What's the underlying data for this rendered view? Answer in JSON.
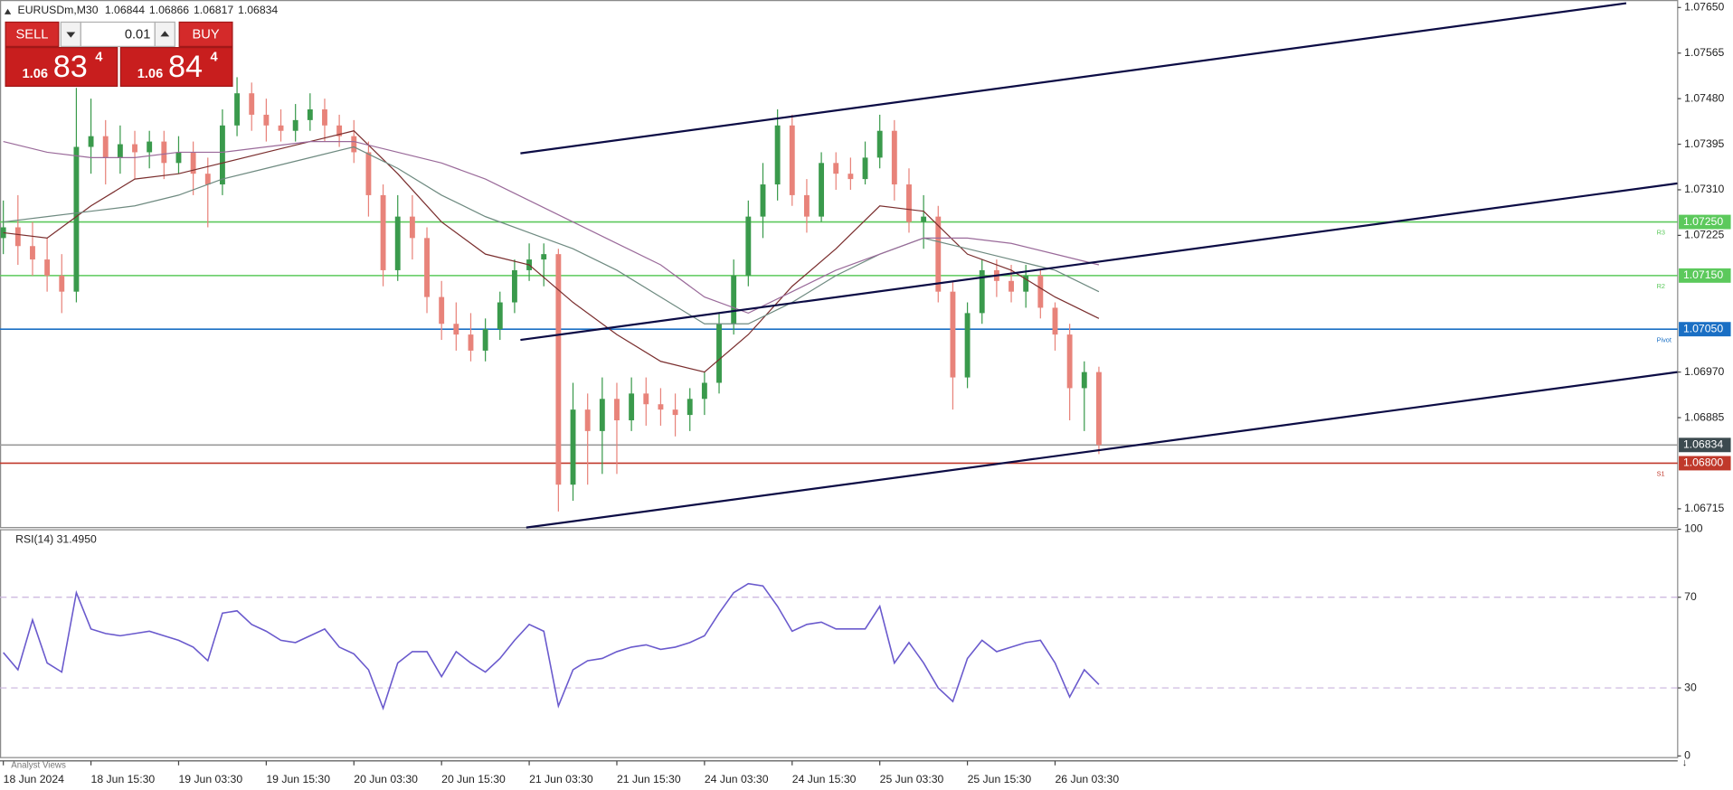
{
  "header": {
    "symbol": "EURUSDm,M30",
    "ohlc": [
      1.06844,
      1.06866,
      1.06817,
      1.06834
    ]
  },
  "trade_panel": {
    "sell": "SELL",
    "buy": "BUY",
    "lot": "0.01",
    "sell_price": [
      "1.06",
      "83",
      "4"
    ],
    "buy_price": [
      "1.06",
      "84",
      "4"
    ]
  },
  "footer": "Analyst Views",
  "chart_data": [
    {
      "type": "candlestick",
      "xlim": [
        -0.2273,
        114.6212
      ],
      "ylim": [
        1.0668,
        1.07664
      ],
      "xticks": [
        {
          "value": 0,
          "label": "18 Jun 2024"
        },
        {
          "value": 6,
          "label": "18 Jun 15:30"
        },
        {
          "value": 12,
          "label": "19 Jun 03:30"
        },
        {
          "value": 18,
          "label": "19 Jun 15:30"
        },
        {
          "value": 24,
          "label": "20 Jun 03:30"
        },
        {
          "value": 30,
          "label": "20 Jun 15:30"
        },
        {
          "value": 36,
          "label": "21 Jun 03:30"
        },
        {
          "value": 42,
          "label": "21 Jun 15:30"
        },
        {
          "value": 48,
          "label": "24 Jun 03:30"
        },
        {
          "value": 54,
          "label": "24 Jun 15:30"
        },
        {
          "value": 60,
          "label": "25 Jun 03:30"
        },
        {
          "value": 66,
          "label": "25 Jun 15:30"
        },
        {
          "value": 72,
          "label": "26 Jun 03:30"
        }
      ],
      "yticks": [
        {
          "value": 1.0765,
          "label": "1.07650"
        },
        1.07565,
        {
          "value": 1.0748,
          "label": "1.07480"
        },
        1.07395,
        {
          "value": 1.0731,
          "label": "1.07310"
        },
        1.07225,
        {
          "value": 1.0697,
          "label": "1.06970"
        },
        1.06885,
        1.06715
      ],
      "bull_color": "#3a9a4c",
      "bear_color": "#e8837a",
      "ohlc": [
        [
          1.0722,
          1.0729,
          1.0719,
          1.0724
        ],
        [
          1.0724,
          1.073,
          1.0717,
          1.07205
        ],
        [
          1.07205,
          1.0725,
          1.0715,
          1.0718
        ],
        [
          1.0718,
          1.0722,
          1.0712,
          1.0715
        ],
        [
          1.0715,
          1.0719,
          1.0708,
          1.0712
        ],
        [
          1.0712,
          1.075,
          1.071,
          1.0739
        ],
        [
          1.0739,
          1.0748,
          1.0734,
          1.0741
        ],
        [
          1.0741,
          1.0744,
          1.0732,
          1.0737
        ],
        [
          1.0737,
          1.0743,
          1.0734,
          1.07395
        ],
        [
          1.07395,
          1.0742,
          1.0733,
          1.0738
        ],
        [
          1.0738,
          1.0742,
          1.0735,
          1.074
        ],
        [
          1.074,
          1.0742,
          1.0733,
          1.0736
        ],
        [
          1.0736,
          1.0741,
          1.0734,
          1.0738
        ],
        [
          1.0738,
          1.074,
          1.073,
          1.0734
        ],
        [
          1.0734,
          1.0737,
          1.0724,
          1.0732
        ],
        [
          1.0732,
          1.0746,
          1.073,
          1.0743
        ],
        [
          1.0743,
          1.0752,
          1.0741,
          1.0749
        ],
        [
          1.0749,
          1.0751,
          1.0742,
          1.0745
        ],
        [
          1.0745,
          1.0748,
          1.074,
          1.0743
        ],
        [
          1.0743,
          1.0746,
          1.074,
          1.0742
        ],
        [
          1.0742,
          1.0747,
          1.074,
          1.0744
        ],
        [
          1.0744,
          1.0749,
          1.0742,
          1.0746
        ],
        [
          1.0746,
          1.0748,
          1.074,
          1.0743
        ],
        [
          1.0743,
          1.0745,
          1.0739,
          1.0741
        ],
        [
          1.0741,
          1.0744,
          1.0736,
          1.0738
        ],
        [
          1.0738,
          1.074,
          1.0726,
          1.073
        ],
        [
          1.073,
          1.0732,
          1.0713,
          1.0716
        ],
        [
          1.0716,
          1.073,
          1.0714,
          1.0726
        ],
        [
          1.0726,
          1.073,
          1.0718,
          1.0722
        ],
        [
          1.0722,
          1.0724,
          1.0708,
          1.0711
        ],
        [
          1.0711,
          1.0714,
          1.0703,
          1.0706
        ],
        [
          1.0706,
          1.071,
          1.0701,
          1.0704
        ],
        [
          1.0704,
          1.0708,
          1.0699,
          1.0701
        ],
        [
          1.0701,
          1.0707,
          1.0699,
          1.0705
        ],
        [
          1.0705,
          1.0712,
          1.0703,
          1.071
        ],
        [
          1.071,
          1.0718,
          1.0708,
          1.0716
        ],
        [
          1.0716,
          1.0721,
          1.0714,
          1.0718
        ],
        [
          1.0718,
          1.0721,
          1.0713,
          1.0719
        ],
        [
          1.0719,
          1.072,
          1.0671,
          1.0676
        ],
        [
          1.0676,
          1.0695,
          1.0673,
          1.069
        ],
        [
          1.069,
          1.0693,
          1.0676,
          1.0686
        ],
        [
          1.0686,
          1.0696,
          1.0678,
          1.0692
        ],
        [
          1.0692,
          1.0695,
          1.0678,
          1.0688
        ],
        [
          1.0688,
          1.0696,
          1.0686,
          1.0693
        ],
        [
          1.0693,
          1.0696,
          1.0687,
          1.0691
        ],
        [
          1.0691,
          1.0694,
          1.0687,
          1.069
        ],
        [
          1.069,
          1.0693,
          1.0685,
          1.0689
        ],
        [
          1.0689,
          1.0694,
          1.0686,
          1.0692
        ],
        [
          1.0692,
          1.0697,
          1.0689,
          1.0695
        ],
        [
          1.0695,
          1.0708,
          1.0693,
          1.0706
        ],
        [
          1.0706,
          1.0718,
          1.0704,
          1.0715
        ],
        [
          1.0715,
          1.0729,
          1.0713,
          1.0726
        ],
        [
          1.0726,
          1.0736,
          1.0722,
          1.0732
        ],
        [
          1.0732,
          1.0746,
          1.0729,
          1.0743
        ],
        [
          1.0743,
          1.0745,
          1.0728,
          1.073
        ],
        [
          1.073,
          1.0733,
          1.0723,
          1.0726
        ],
        [
          1.0726,
          1.0738,
          1.0725,
          1.0736
        ],
        [
          1.0736,
          1.0738,
          1.0731,
          1.0734
        ],
        [
          1.0734,
          1.0737,
          1.0731,
          1.0733
        ],
        [
          1.0733,
          1.074,
          1.0732,
          1.0737
        ],
        [
          1.0737,
          1.0745,
          1.0735,
          1.0742
        ],
        [
          1.0742,
          1.0744,
          1.0729,
          1.0732
        ],
        [
          1.0732,
          1.0735,
          1.0723,
          1.0725
        ],
        [
          1.0725,
          1.073,
          1.072,
          1.0726
        ],
        [
          1.0726,
          1.0728,
          1.071,
          1.0712
        ],
        [
          1.0712,
          1.0714,
          1.069,
          1.0696
        ],
        [
          1.0696,
          1.071,
          1.0694,
          1.0708
        ],
        [
          1.0708,
          1.0718,
          1.0706,
          1.0716
        ],
        [
          1.0716,
          1.0718,
          1.0711,
          1.0714
        ],
        [
          1.0714,
          1.0717,
          1.071,
          1.0712
        ],
        [
          1.0712,
          1.0717,
          1.0709,
          1.0715
        ],
        [
          1.0715,
          1.0716,
          1.0707,
          1.0709
        ],
        [
          1.0709,
          1.071,
          1.0701,
          1.0704
        ],
        [
          1.0704,
          1.0706,
          1.0688,
          1.0694
        ],
        [
          1.0694,
          1.0699,
          1.0686,
          1.0697
        ],
        [
          1.0697,
          1.0698,
          1.06817,
          1.06834
        ]
      ],
      "moving_averages": [
        {
          "color": "#7a2e2e",
          "x": [
            0,
            3,
            6,
            9,
            12,
            15,
            18,
            21,
            24,
            27,
            30,
            33,
            36,
            39,
            42,
            45,
            48,
            51,
            54,
            57,
            60,
            63,
            66,
            69,
            72,
            75
          ],
          "values": [
            1.0723,
            1.0722,
            1.0728,
            1.0733,
            1.0734,
            1.0736,
            1.0738,
            1.074,
            1.0742,
            1.0734,
            1.0725,
            1.0719,
            1.0717,
            1.071,
            1.0704,
            1.0699,
            1.0697,
            1.0704,
            1.0713,
            1.072,
            1.0728,
            1.0727,
            1.0719,
            1.0716,
            1.0711,
            1.0707
          ]
        },
        {
          "color": "#6e8a80",
          "x": [
            0,
            3,
            6,
            9,
            12,
            15,
            18,
            21,
            24,
            27,
            30,
            33,
            36,
            39,
            42,
            45,
            48,
            51,
            54,
            57,
            60,
            63,
            66,
            69,
            72,
            75
          ],
          "values": [
            1.0725,
            1.0726,
            1.0727,
            1.0728,
            1.073,
            1.0733,
            1.0735,
            1.0737,
            1.0739,
            1.0735,
            1.073,
            1.0726,
            1.0723,
            1.072,
            1.0716,
            1.0711,
            1.0706,
            1.0706,
            1.071,
            1.0715,
            1.0719,
            1.0722,
            1.072,
            1.0718,
            1.0716,
            1.0712
          ]
        },
        {
          "color": "#9a6a9a",
          "x": [
            0,
            3,
            6,
            9,
            12,
            15,
            18,
            21,
            24,
            27,
            30,
            33,
            36,
            39,
            42,
            45,
            48,
            51,
            54,
            57,
            60,
            63,
            66,
            69,
            72,
            75
          ],
          "values": [
            1.074,
            1.0738,
            1.0737,
            1.0737,
            1.0738,
            1.0738,
            1.0739,
            1.074,
            1.074,
            1.0738,
            1.0736,
            1.0733,
            1.0729,
            1.0725,
            1.0721,
            1.0717,
            1.0711,
            1.0708,
            1.0712,
            1.0716,
            1.0719,
            1.0722,
            1.0722,
            1.0721,
            1.0719,
            1.0717
          ]
        }
      ],
      "trendline_color": "#0c0c45",
      "trendlines": [
        {
          "x": [
            35.4,
            111.1
          ],
          "y": [
            1.07378,
            1.07658
          ]
        },
        {
          "x": [
            35.4,
            114.6
          ],
          "y": [
            1.0703,
            1.07322
          ]
        },
        {
          "x": [
            35.8,
            114.6
          ],
          "y": [
            1.0668,
            1.0697
          ]
        }
      ],
      "levels": [
        {
          "value": 1.0725,
          "value_label": "1.07250",
          "label": "R3",
          "color": "#5cc95c"
        },
        {
          "value": 1.0715,
          "value_label": "1.07150",
          "label": "R2",
          "color": "#5cc95c"
        },
        {
          "value": 1.0705,
          "value_label": "1.07050",
          "label": "Pivot",
          "color": "#1a6fc4"
        },
        {
          "value": 1.06834,
          "color": "#9a9a9a",
          "box_color": "#3c4a4f"
        },
        {
          "value": 1.068,
          "value_label": "1.06800",
          "label": "S1",
          "color": "#c0392b"
        }
      ]
    },
    {
      "type": "line",
      "title": "RSI(14) 31.4950",
      "color": "#6a5acd",
      "ylim": [
        0,
        100
      ],
      "yticks": [
        0,
        30,
        70,
        100
      ],
      "levels": [
        30,
        70
      ],
      "level_color": "#c9b3dd",
      "values": [
        45.6,
        38,
        60,
        41,
        37,
        72,
        56,
        54,
        53,
        54,
        55,
        53,
        51,
        48,
        42,
        63,
        64,
        58,
        55,
        51,
        50,
        53,
        56,
        48,
        45,
        38,
        21,
        41,
        46,
        46,
        35,
        46,
        41,
        37,
        43,
        51,
        58,
        55,
        22,
        38,
        42,
        43,
        46,
        48,
        49,
        47,
        48,
        50,
        53,
        63,
        72,
        76,
        75,
        66,
        55,
        58,
        59,
        56,
        56,
        56,
        66,
        41,
        50,
        41,
        30,
        24,
        43,
        51,
        46,
        48,
        50,
        51,
        41,
        26,
        38,
        31.5
      ]
    }
  ]
}
